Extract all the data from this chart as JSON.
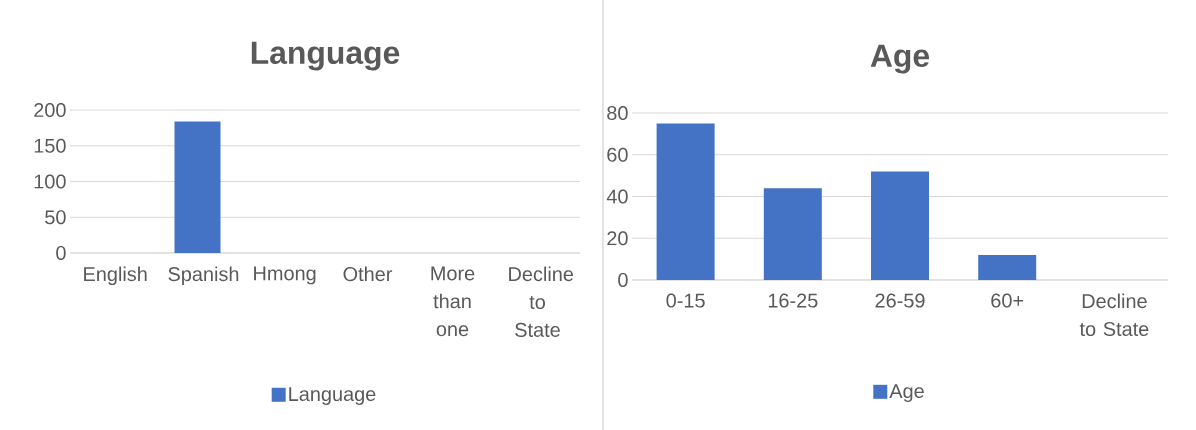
{
  "chart_data": [
    {
      "type": "bar",
      "title": "Language",
      "categories": [
        "English",
        "Spanish",
        "Hmong",
        "Other",
        "More than one",
        "Decline to State"
      ],
      "series": [
        {
          "name": "Language",
          "color": "#4472c4",
          "values": [
            0,
            184,
            0,
            0,
            0,
            0
          ]
        }
      ],
      "ylim": [
        0,
        200
      ],
      "yticks": [
        0,
        50,
        100,
        150,
        200
      ],
      "grid": "y",
      "legend": "bottom"
    },
    {
      "type": "bar",
      "title": "Age",
      "categories": [
        "0-15",
        "16-25",
        "26-59",
        "60+",
        "Decline to State"
      ],
      "series": [
        {
          "name": "Age",
          "color": "#4472c4",
          "values": [
            75,
            44,
            52,
            12,
            0
          ]
        }
      ],
      "ylim": [
        0,
        80
      ],
      "yticks": [
        0,
        20,
        40,
        60,
        80
      ],
      "grid": "y",
      "legend": "bottom"
    }
  ]
}
